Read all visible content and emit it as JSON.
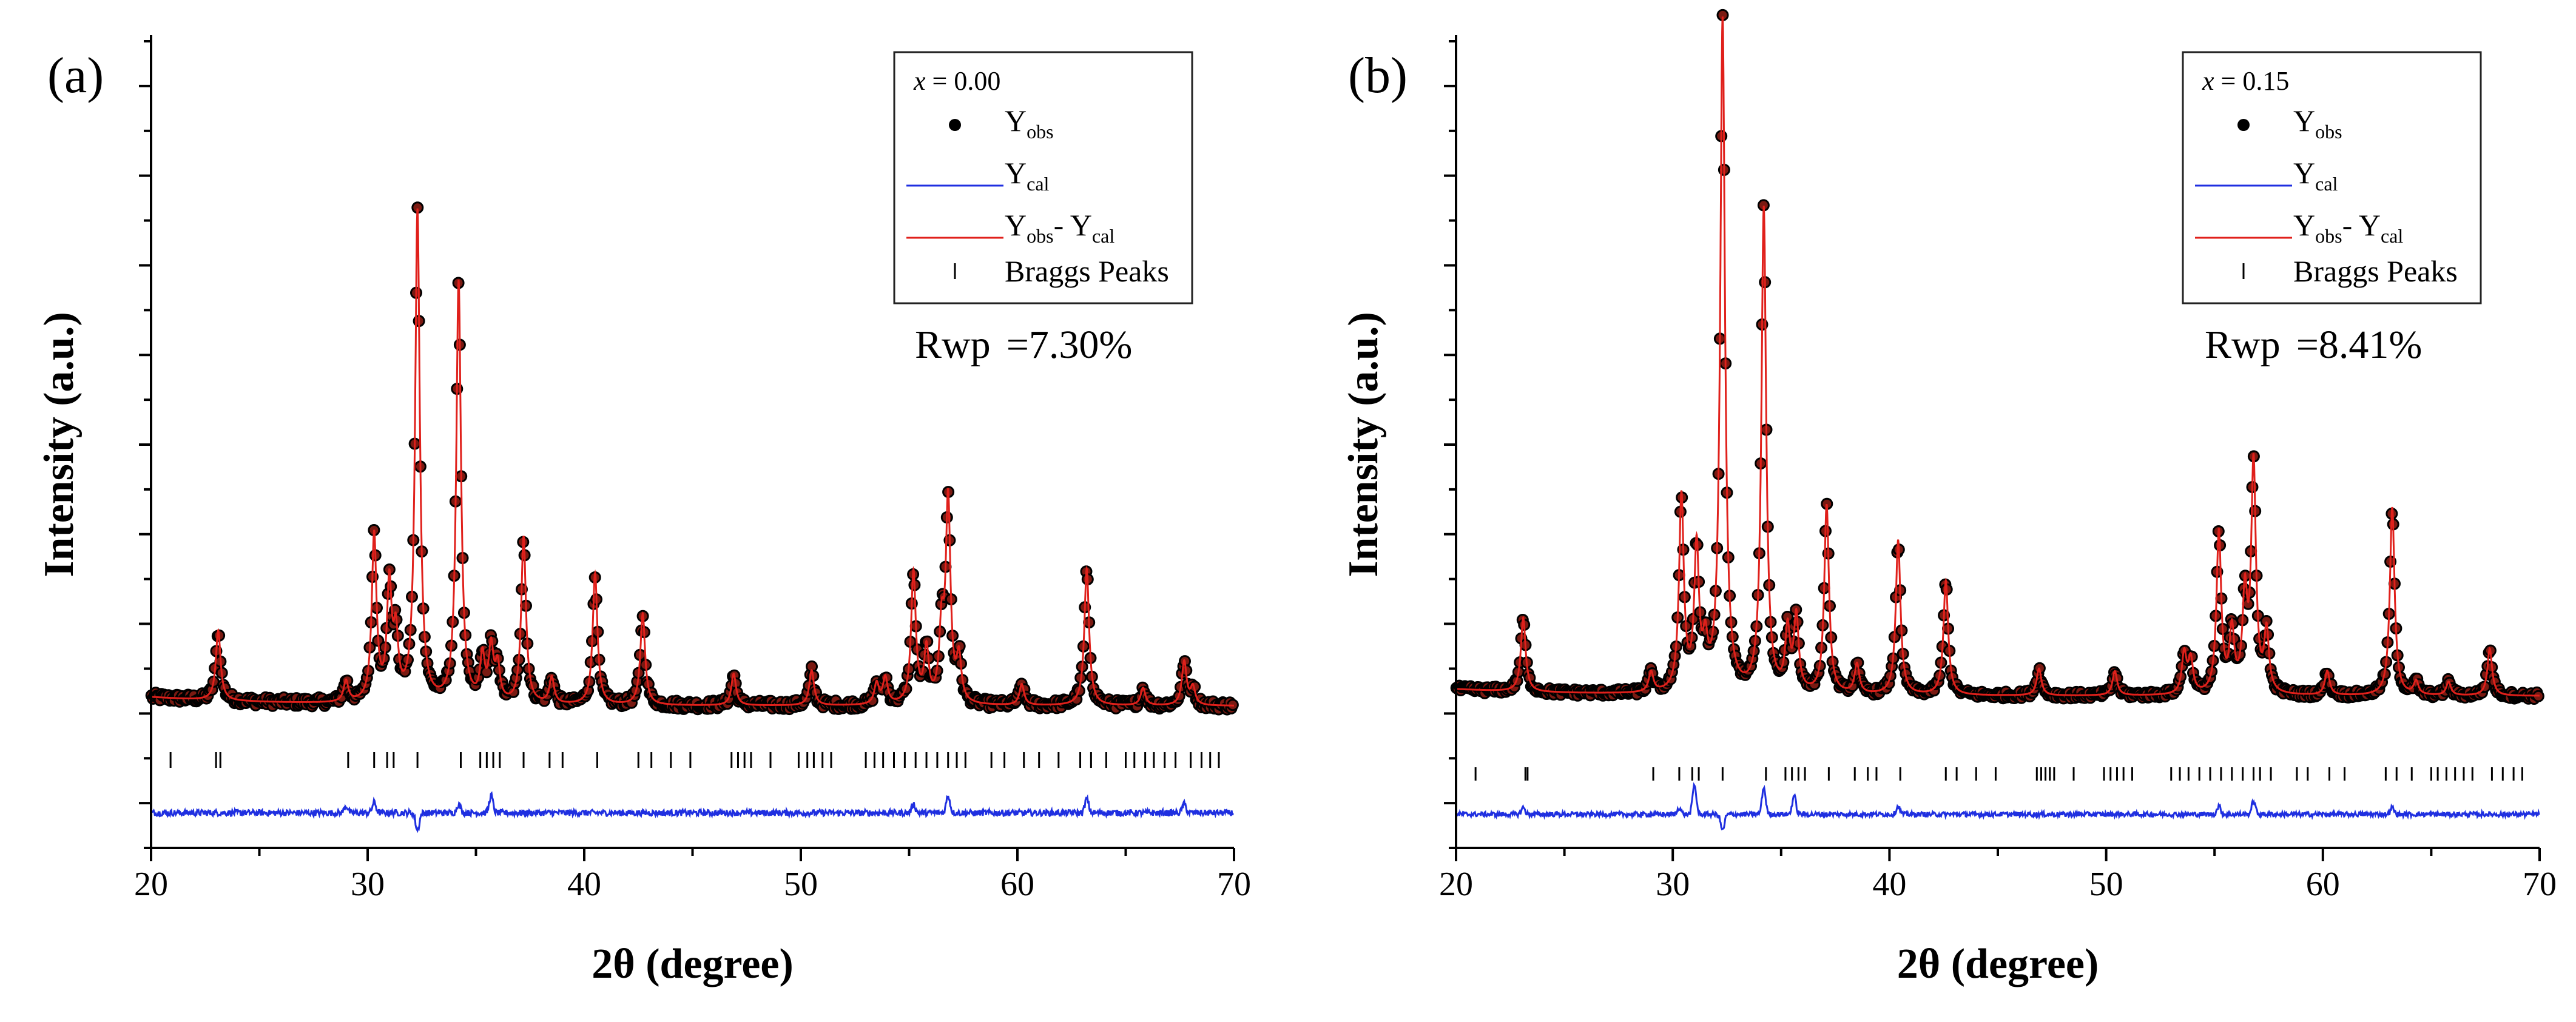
{
  "colors": {
    "obs": "#000000",
    "obs_fill": "#7a1a12",
    "calc": "#e0201b",
    "diff": "#1f2fe0",
    "bragg": "#000000",
    "axis": "#000000"
  },
  "chart_data": [
    {
      "type": "scatter",
      "panel_label": "(a)",
      "composition_var": "x",
      "composition_text": " = 0.00",
      "xlabel": "2θ (degree)",
      "ylabel": "Intensity (a.u.)",
      "xlim": [
        20,
        70
      ],
      "xticks": [
        20,
        30,
        40,
        50,
        60,
        70
      ],
      "ylim": [
        -0.6,
        4.0
      ],
      "legend": {
        "position": "top-right",
        "entries": [
          {
            "name": "Y",
            "sub": "obs",
            "marker": "dot"
          },
          {
            "name": "Y",
            "sub": "cal",
            "marker": "line-blue"
          },
          {
            "name": "Y",
            "sub": "obs",
            "name2": "- Y",
            "sub2": "cal",
            "marker": "line-red"
          },
          {
            "name": "Braggs Peaks",
            "marker": "tick"
          }
        ]
      },
      "rwp_label": "Rwp",
      "rwp_value": "=7.30%",
      "background": 0.21,
      "peaks": [
        [
          23.1,
          0.4
        ],
        [
          29.0,
          0.12
        ],
        [
          30.3,
          0.95
        ],
        [
          31.0,
          0.65
        ],
        [
          31.3,
          0.35
        ],
        [
          32.3,
          2.8
        ],
        [
          34.2,
          2.4
        ],
        [
          35.3,
          0.25
        ],
        [
          35.7,
          0.3
        ],
        [
          36.0,
          0.2
        ],
        [
          37.2,
          0.95
        ],
        [
          38.5,
          0.15
        ],
        [
          40.5,
          0.75
        ],
        [
          42.7,
          0.52
        ],
        [
          46.9,
          0.18
        ],
        [
          50.5,
          0.2
        ],
        [
          53.5,
          0.12
        ],
        [
          53.9,
          0.15
        ],
        [
          55.2,
          0.75
        ],
        [
          55.8,
          0.3
        ],
        [
          56.5,
          0.4
        ],
        [
          56.8,
          1.15
        ],
        [
          57.3,
          0.25
        ],
        [
          60.2,
          0.12
        ],
        [
          63.2,
          0.78
        ],
        [
          65.8,
          0.1
        ],
        [
          67.7,
          0.25
        ],
        [
          68.1,
          0.1
        ]
      ],
      "bragg_positions": [
        20.9,
        23.0,
        23.2,
        29.1,
        30.3,
        30.9,
        31.2,
        32.3,
        34.3,
        35.2,
        35.5,
        35.8,
        36.1,
        37.2,
        38.4,
        39.0,
        40.6,
        42.5,
        43.1,
        44.0,
        44.9,
        46.8,
        47.1,
        47.4,
        47.7,
        48.6,
        49.9,
        50.3,
        50.6,
        51.0,
        51.4,
        53.0,
        53.4,
        53.8,
        54.3,
        54.8,
        55.3,
        55.8,
        56.3,
        56.8,
        57.2,
        57.6,
        58.8,
        59.4,
        60.3,
        61.0,
        61.9,
        62.9,
        63.4,
        64.1,
        65.0,
        65.4,
        65.9,
        66.3,
        66.8,
        67.3,
        68.0,
        68.5,
        68.9,
        69.3
      ],
      "diff_baseline": -0.4,
      "diff_features": [
        [
          29.0,
          0.04
        ],
        [
          30.3,
          0.06
        ],
        [
          32.3,
          -0.1
        ],
        [
          34.2,
          0.05
        ],
        [
          35.7,
          0.1
        ],
        [
          55.2,
          0.05
        ],
        [
          56.8,
          0.1
        ],
        [
          63.2,
          0.08
        ],
        [
          67.7,
          0.05
        ]
      ]
    },
    {
      "type": "scatter",
      "panel_label": "(b)",
      "composition_var": "x",
      "composition_text": " = 0.15",
      "xlabel": "2θ (degree)",
      "ylabel": "Intensity (a.u.)",
      "xlim": [
        20,
        70
      ],
      "xticks": [
        20,
        30,
        40,
        50,
        60,
        70
      ],
      "ylim": [
        -0.8,
        5.2
      ],
      "legend": {
        "position": "top-right",
        "entries": [
          {
            "name": "Y",
            "sub": "obs",
            "marker": "dot"
          },
          {
            "name": "Y",
            "sub": "cal",
            "marker": "line-blue"
          },
          {
            "name": "Y",
            "sub": "obs",
            "name2": "- Y",
            "sub2": "cal",
            "marker": "line-red"
          },
          {
            "name": "Braggs Peaks",
            "marker": "tick"
          }
        ]
      },
      "rwp_label": "Rwp",
      "rwp_value": "=8.41%",
      "background": 0.33,
      "peaks": [
        [
          23.1,
          0.55
        ],
        [
          29.0,
          0.15
        ],
        [
          30.4,
          1.45
        ],
        [
          31.1,
          1.05
        ],
        [
          31.5,
          0.3
        ],
        [
          32.3,
          5.0
        ],
        [
          34.2,
          3.6
        ],
        [
          35.3,
          0.45
        ],
        [
          35.7,
          0.55
        ],
        [
          37.1,
          1.4
        ],
        [
          38.5,
          0.22
        ],
        [
          40.4,
          1.15
        ],
        [
          42.6,
          0.85
        ],
        [
          46.9,
          0.2
        ],
        [
          50.4,
          0.18
        ],
        [
          53.6,
          0.3
        ],
        [
          53.9,
          0.25
        ],
        [
          55.2,
          1.2
        ],
        [
          55.8,
          0.45
        ],
        [
          56.4,
          0.7
        ],
        [
          56.8,
          1.7
        ],
        [
          57.4,
          0.45
        ],
        [
          60.2,
          0.18
        ],
        [
          63.2,
          1.4
        ],
        [
          64.3,
          0.1
        ],
        [
          65.8,
          0.1
        ],
        [
          67.7,
          0.35
        ]
      ],
      "bragg_positions": [
        20.9,
        23.2,
        23.3,
        29.1,
        30.3,
        30.9,
        31.2,
        32.3,
        34.3,
        35.2,
        35.5,
        35.8,
        36.1,
        37.2,
        38.4,
        39.0,
        39.4,
        40.5,
        42.6,
        43.1,
        44.0,
        44.9,
        46.8,
        47.0,
        47.2,
        47.4,
        47.6,
        48.5,
        49.9,
        50.2,
        50.5,
        50.8,
        51.2,
        53.0,
        53.4,
        53.8,
        54.3,
        54.8,
        55.3,
        55.8,
        56.3,
        56.8,
        57.1,
        57.6,
        58.8,
        59.3,
        60.3,
        61.0,
        62.9,
        63.4,
        64.1,
        65.0,
        65.3,
        65.7,
        66.1,
        66.5,
        66.9,
        67.8,
        68.3,
        68.8,
        69.2
      ],
      "diff_baseline": -0.55,
      "diff_features": [
        [
          23.1,
          0.05
        ],
        [
          30.3,
          0.05
        ],
        [
          31.0,
          0.22
        ],
        [
          32.3,
          -0.12
        ],
        [
          34.2,
          0.2
        ],
        [
          35.6,
          0.14
        ],
        [
          40.4,
          0.06
        ],
        [
          55.2,
          0.06
        ],
        [
          56.8,
          0.1
        ],
        [
          63.2,
          0.05
        ]
      ]
    }
  ]
}
